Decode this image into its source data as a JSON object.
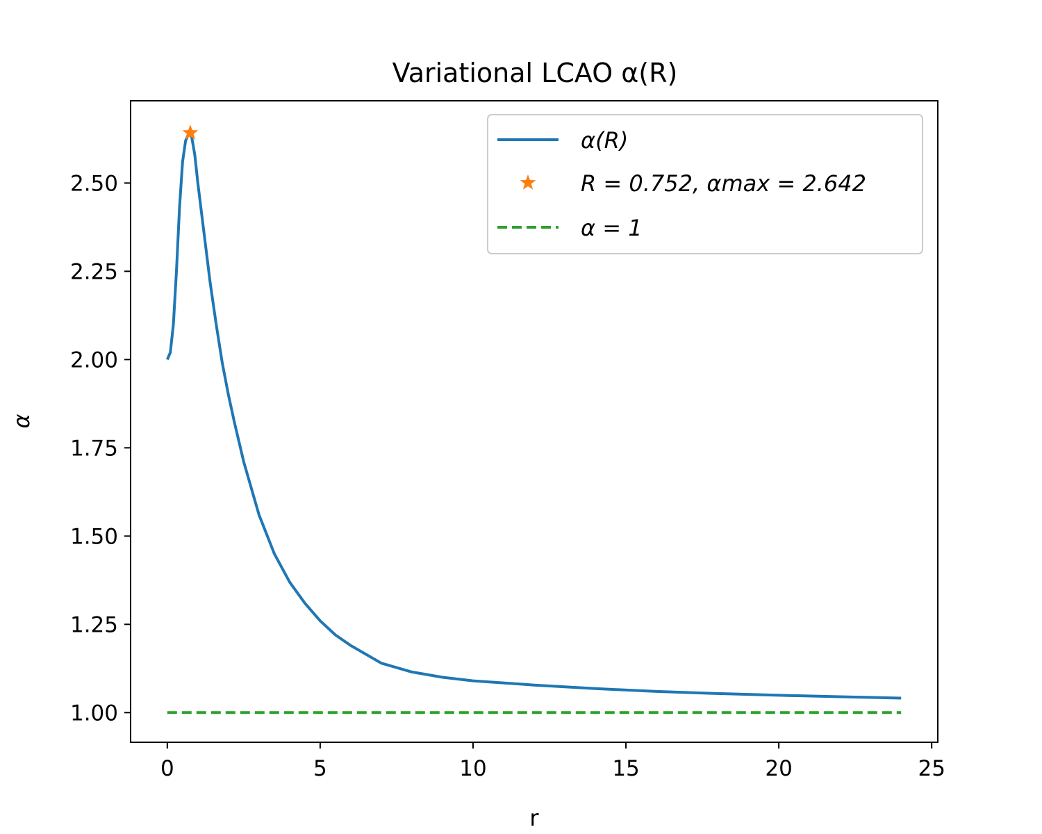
{
  "chart_data": {
    "type": "line",
    "title": "Variational LCAO α(R)",
    "xlabel": "r",
    "ylabel": "α",
    "xlim": [
      -1.2,
      25.2
    ],
    "ylim": [
      0.916,
      2.733
    ],
    "xticks": [
      0,
      5,
      10,
      15,
      20,
      25
    ],
    "yticks": [
      1.0,
      1.25,
      1.5,
      1.75,
      2.0,
      2.25,
      2.5
    ],
    "xtick_labels": [
      "0",
      "5",
      "10",
      "15",
      "20",
      "25"
    ],
    "ytick_labels": [
      "1.00",
      "1.25",
      "1.50",
      "1.75",
      "2.00",
      "2.25",
      "2.50"
    ],
    "grid": false,
    "legend_position": "top-right",
    "legend": [
      "α(R)",
      "R = 0.752, αmax = 2.642",
      "α = 1"
    ],
    "series": [
      {
        "name": "α(R)",
        "style": "solid",
        "color": "#1f77b4",
        "x": [
          0.0,
          0.1,
          0.2,
          0.3,
          0.4,
          0.5,
          0.6,
          0.7,
          0.752,
          0.8,
          0.9,
          1.0,
          1.2,
          1.4,
          1.6,
          1.8,
          2.0,
          2.2,
          2.5,
          3.0,
          3.5,
          4.0,
          4.5,
          5.0,
          5.5,
          6.0,
          7.0,
          8.0,
          9.0,
          10.0,
          12.0,
          14.0,
          16.0,
          18.0,
          20.0,
          22.0,
          24.0
        ],
        "y": [
          2.0,
          2.02,
          2.1,
          2.25,
          2.43,
          2.56,
          2.62,
          2.64,
          2.642,
          2.63,
          2.58,
          2.5,
          2.36,
          2.22,
          2.1,
          1.99,
          1.9,
          1.82,
          1.71,
          1.56,
          1.45,
          1.37,
          1.31,
          1.26,
          1.22,
          1.19,
          1.14,
          1.115,
          1.1,
          1.09,
          1.078,
          1.068,
          1.06,
          1.054,
          1.049,
          1.045,
          1.041
        ]
      },
      {
        "name": "R = 0.752, αmax = 2.642",
        "style": "marker-star",
        "color": "#ff7f0e",
        "x": [
          0.752
        ],
        "y": [
          2.642
        ]
      },
      {
        "name": "α = 1",
        "style": "dashed",
        "color": "#2ca02c",
        "x": [
          0.0,
          24.0
        ],
        "y": [
          1.0,
          1.0
        ]
      }
    ]
  }
}
